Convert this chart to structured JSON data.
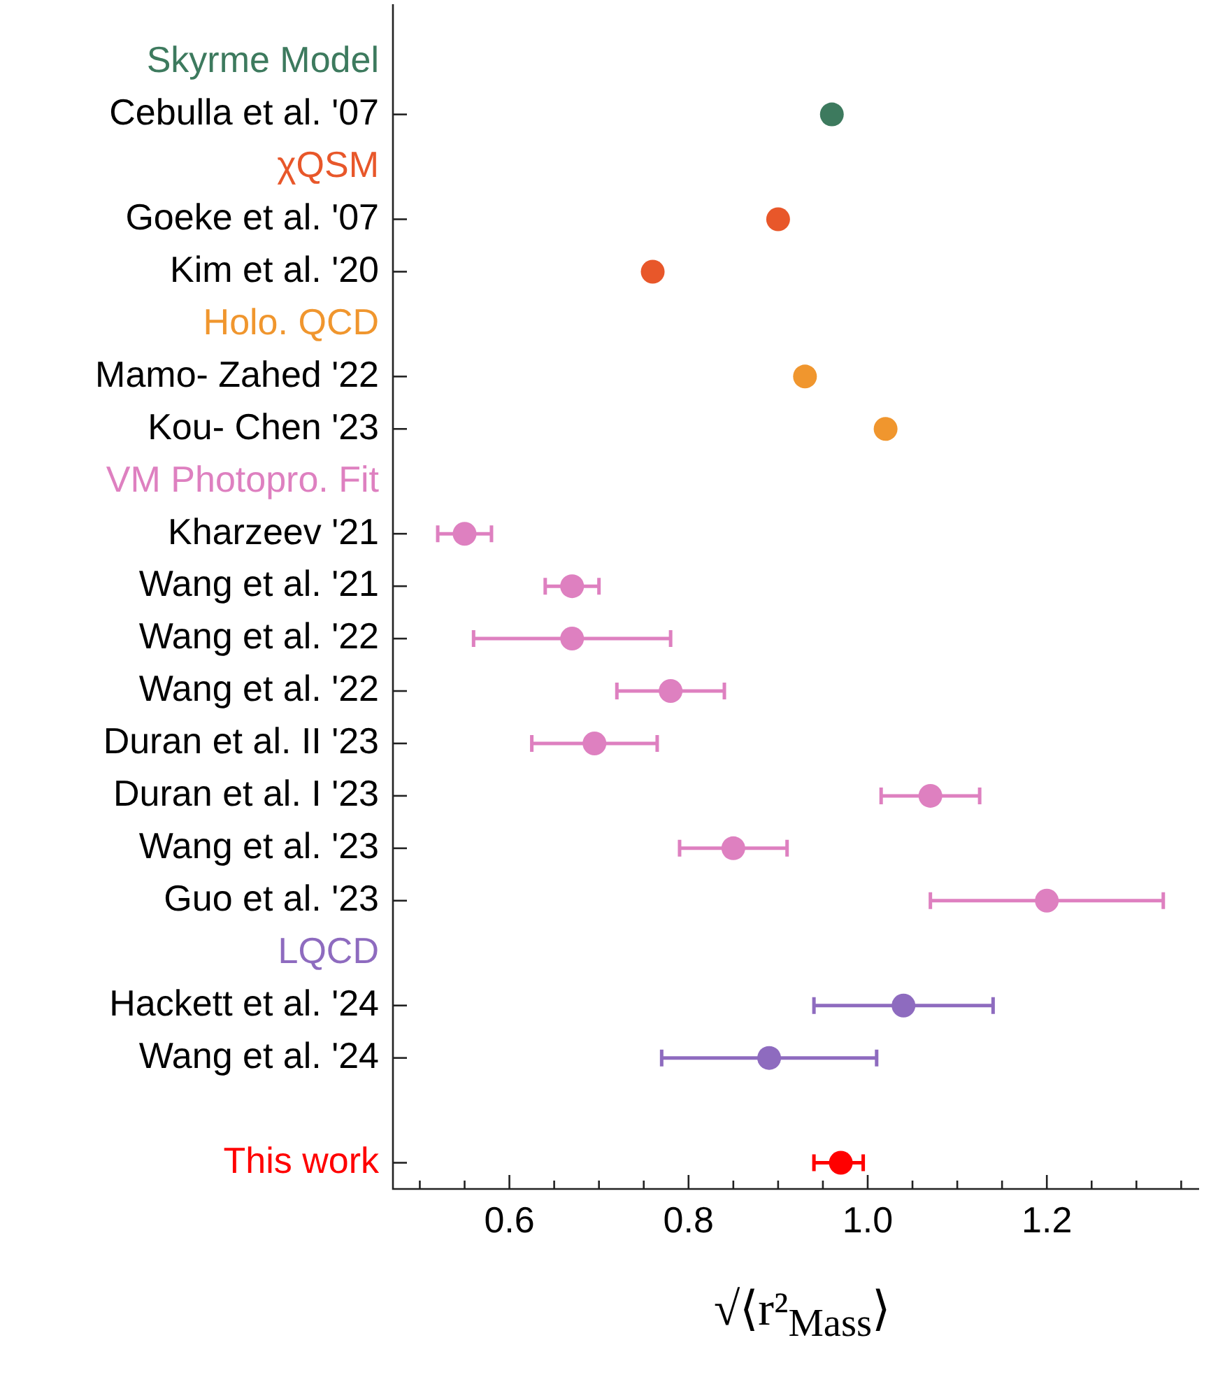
{
  "chart_data": {
    "type": "scatter",
    "xlabel": "√⟨r²$_{Mass}$⟩",
    "categories": [
      null,
      "Cebulla et al. '07",
      null,
      "Goeke et al. '07",
      "Kim et al. '20",
      null,
      "Mamo- Zahed '22",
      "Kou- Chen '23",
      null,
      "Kharzeev '21",
      "Wang et al. '21",
      "Wang et al. '22",
      "Wang et al. '22",
      "Duran et al. II '23",
      "Duran et al. I '23",
      "Wang et al. '23",
      "Guo et al. '23",
      null,
      "Hackett et al. '24",
      "Wang et al. '24",
      null,
      null
    ],
    "series": [
      {
        "name": "Skyrme Model",
        "color": "#3d7a5e",
        "values": [
          null,
          0.96,
          null,
          null,
          null,
          null,
          null,
          null,
          null,
          null,
          null,
          null,
          null,
          null,
          null,
          null,
          null,
          null,
          null,
          null,
          null,
          null
        ]
      },
      {
        "name": "χQSM",
        "color": "#e8572a",
        "values": [
          null,
          null,
          null,
          0.9,
          0.76,
          null,
          null,
          null,
          null,
          null,
          null,
          null,
          null,
          null,
          null,
          null,
          null,
          null,
          null,
          null,
          null,
          null
        ]
      },
      {
        "name": "Holo. QCD",
        "color": "#f0962e",
        "values": [
          null,
          null,
          null,
          null,
          null,
          null,
          0.93,
          1.02,
          null,
          null,
          null,
          null,
          null,
          null,
          null,
          null,
          null,
          null,
          null,
          null,
          null,
          null
        ]
      },
      {
        "name": "VM Photopro. Fit",
        "color": "#de80c0",
        "values": [
          null,
          null,
          null,
          null,
          null,
          null,
          null,
          null,
          null,
          0.55,
          0.67,
          0.67,
          0.78,
          0.695,
          1.07,
          0.85,
          1.2,
          null,
          null,
          null,
          null,
          null
        ],
        "errors": [
          null,
          null,
          null,
          null,
          null,
          null,
          null,
          null,
          null,
          [
            0.52,
            0.58
          ],
          [
            0.64,
            0.7
          ],
          [
            0.56,
            0.78
          ],
          [
            0.72,
            0.84
          ],
          [
            0.625,
            0.765
          ],
          [
            1.015,
            1.125
          ],
          [
            0.79,
            0.91
          ],
          [
            1.07,
            1.33
          ],
          null,
          null,
          null,
          null,
          null
        ]
      },
      {
        "name": "LQCD",
        "color": "#8e6bbf",
        "values": [
          null,
          null,
          null,
          null,
          null,
          null,
          null,
          null,
          null,
          null,
          null,
          null,
          null,
          null,
          null,
          null,
          null,
          null,
          1.04,
          0.89,
          null,
          null
        ],
        "errors": [
          null,
          null,
          null,
          null,
          null,
          null,
          null,
          null,
          null,
          null,
          null,
          null,
          null,
          null,
          null,
          null,
          null,
          null,
          [
            0.94,
            1.14
          ],
          [
            0.77,
            1.01
          ],
          null,
          null
        ]
      },
      {
        "name": "This work",
        "color": "#ff0000",
        "values": [
          null,
          null,
          null,
          null,
          null,
          null,
          null,
          null,
          null,
          null,
          null,
          null,
          null,
          null,
          null,
          null,
          null,
          null,
          null,
          null,
          null,
          0.97
        ],
        "errors": [
          null,
          null,
          null,
          null,
          null,
          null,
          null,
          null,
          null,
          null,
          null,
          null,
          null,
          null,
          null,
          null,
          null,
          null,
          null,
          null,
          null,
          [
            0.94,
            0.995
          ]
        ]
      }
    ],
    "xlim": [
      0.47,
      1.37
    ],
    "xticks": [
      {
        "value": 0.5,
        "label": null
      },
      {
        "value": 0.55,
        "label": null
      },
      {
        "value": 0.6,
        "label": "0.6"
      },
      {
        "value": 0.65,
        "label": null
      },
      {
        "value": 0.7,
        "label": null
      },
      {
        "value": 0.75,
        "label": null
      },
      {
        "value": 0.8,
        "label": "0.8"
      },
      {
        "value": 0.85,
        "label": null
      },
      {
        "value": 0.9,
        "label": null
      },
      {
        "value": 0.95,
        "label": null
      },
      {
        "value": 1.0,
        "label": "1.0"
      },
      {
        "value": 1.05,
        "label": null
      },
      {
        "value": 1.1,
        "label": null
      },
      {
        "value": 1.15,
        "label": null
      },
      {
        "value": 1.2,
        "label": "1.2"
      },
      {
        "value": 1.25,
        "label": null
      },
      {
        "value": 1.3,
        "label": null
      },
      {
        "value": 1.35,
        "label": null
      }
    ],
    "orientation": "horizontal",
    "marker": "circle",
    "legend": false,
    "grid": false
  }
}
